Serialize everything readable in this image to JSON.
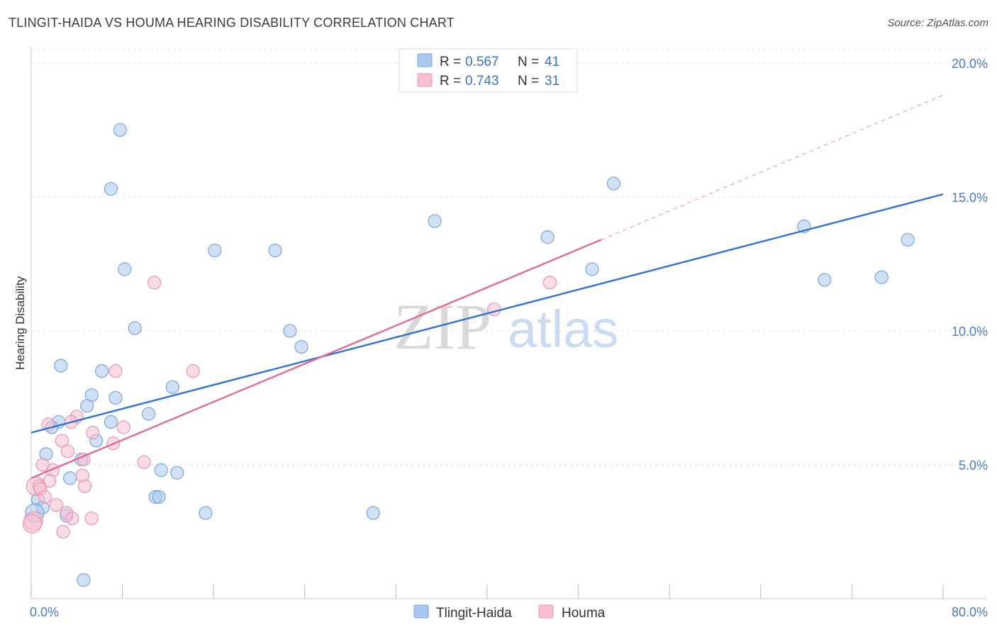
{
  "title": "TLINGIT-HAIDA VS HOUMA HEARING DISABILITY CORRELATION CHART",
  "source": "Source: ZipAtlas.com",
  "watermark": {
    "zip": "ZIP",
    "atlas": "atlas"
  },
  "colors": {
    "blue_fill": "#a9c8ef",
    "blue_stroke": "#7ba6de",
    "blue_line": "#2f74d0",
    "pink_fill": "#f6bfd2",
    "pink_stroke": "#ec94b3",
    "pink_line": "#e36a98",
    "grid": "#e2e2e2",
    "tick_label": "#4a7cc9"
  },
  "legend": {
    "rows": [
      {
        "r_label": "R =",
        "r_value": "0.567",
        "n_label": "N =",
        "n_value": "41"
      },
      {
        "r_label": "R =",
        "r_value": "0.743",
        "n_label": "N =",
        "n_value": "31"
      }
    ]
  },
  "chart_data": {
    "type": "scatter",
    "title": "TLINGIT-HAIDA VS HOUMA HEARING DISABILITY CORRELATION CHART",
    "xlabel": "",
    "ylabel": "Hearing Disability",
    "xlim": [
      0,
      80
    ],
    "ylim": [
      0,
      20.5
    ],
    "x_tick_labels": [
      "0.0%",
      "80.0%"
    ],
    "y_ticks": [
      5,
      10,
      15,
      20
    ],
    "y_tick_labels": [
      "5.0%",
      "10.0%",
      "15.0%",
      "20.0%"
    ],
    "grid": true,
    "legend_position": "top-center",
    "series": [
      {
        "name": "Tlingit-Haida",
        "color": "#a9c8ef",
        "points": [
          [
            7.8,
            17.5
          ],
          [
            7.0,
            15.3
          ],
          [
            8.2,
            12.3
          ],
          [
            9.1,
            10.1
          ],
          [
            2.6,
            8.7
          ],
          [
            6.2,
            8.5
          ],
          [
            5.3,
            7.6
          ],
          [
            7.4,
            7.5
          ],
          [
            12.4,
            7.9
          ],
          [
            4.9,
            7.2
          ],
          [
            10.3,
            6.9
          ],
          [
            2.4,
            6.6
          ],
          [
            7.0,
            6.6
          ],
          [
            1.8,
            6.4
          ],
          [
            5.7,
            5.9
          ],
          [
            1.3,
            5.4
          ],
          [
            4.4,
            5.2
          ],
          [
            11.4,
            4.8
          ],
          [
            12.8,
            4.7
          ],
          [
            3.4,
            4.5
          ],
          [
            10.9,
            3.8
          ],
          [
            11.2,
            3.8
          ],
          [
            0.6,
            3.7
          ],
          [
            1.0,
            3.4
          ],
          [
            3.1,
            3.1
          ],
          [
            0.3,
            3.2
          ],
          [
            15.3,
            3.2
          ],
          [
            4.6,
            0.7
          ],
          [
            16.1,
            13.0
          ],
          [
            21.4,
            13.0
          ],
          [
            22.7,
            10.0
          ],
          [
            23.7,
            9.4
          ],
          [
            35.4,
            14.1
          ],
          [
            45.3,
            13.5
          ],
          [
            49.2,
            12.3
          ],
          [
            51.1,
            15.5
          ],
          [
            67.8,
            13.9
          ],
          [
            69.6,
            11.9
          ],
          [
            74.6,
            12.0
          ],
          [
            76.9,
            13.4
          ],
          [
            30.0,
            3.2
          ]
        ]
      },
      {
        "name": "Houma",
        "color": "#f6bfd2",
        "points": [
          [
            10.8,
            11.8
          ],
          [
            45.5,
            11.8
          ],
          [
            40.6,
            10.8
          ],
          [
            7.4,
            8.5
          ],
          [
            14.2,
            8.5
          ],
          [
            4.0,
            6.8
          ],
          [
            1.5,
            6.5
          ],
          [
            3.5,
            6.6
          ],
          [
            8.1,
            6.4
          ],
          [
            5.4,
            6.2
          ],
          [
            2.7,
            5.9
          ],
          [
            7.2,
            5.8
          ],
          [
            3.2,
            5.5
          ],
          [
            9.9,
            5.1
          ],
          [
            4.6,
            5.2
          ],
          [
            1.0,
            5.0
          ],
          [
            1.9,
            4.8
          ],
          [
            4.5,
            4.6
          ],
          [
            1.6,
            4.4
          ],
          [
            0.4,
            4.2
          ],
          [
            0.7,
            4.2
          ],
          [
            0.8,
            4.1
          ],
          [
            4.7,
            4.2
          ],
          [
            1.2,
            3.8
          ],
          [
            2.2,
            3.5
          ],
          [
            3.1,
            3.2
          ],
          [
            5.3,
            3.0
          ],
          [
            3.6,
            3.0
          ],
          [
            0.2,
            2.9
          ],
          [
            0.1,
            2.8
          ],
          [
            2.8,
            2.5
          ]
        ]
      }
    ],
    "trendlines": [
      {
        "series": "Tlingit-Haida",
        "x": [
          0,
          80
        ],
        "y": [
          6.2,
          15.1
        ]
      },
      {
        "series": "Houma",
        "x": [
          0,
          50
        ],
        "y": [
          4.5,
          13.4
        ],
        "dashed_extension": {
          "x": [
            50,
            80
          ],
          "y": [
            13.4,
            18.8
          ]
        }
      }
    ]
  },
  "bottom_legend": [
    {
      "label": "Tlingit-Haida"
    },
    {
      "label": "Houma"
    }
  ]
}
